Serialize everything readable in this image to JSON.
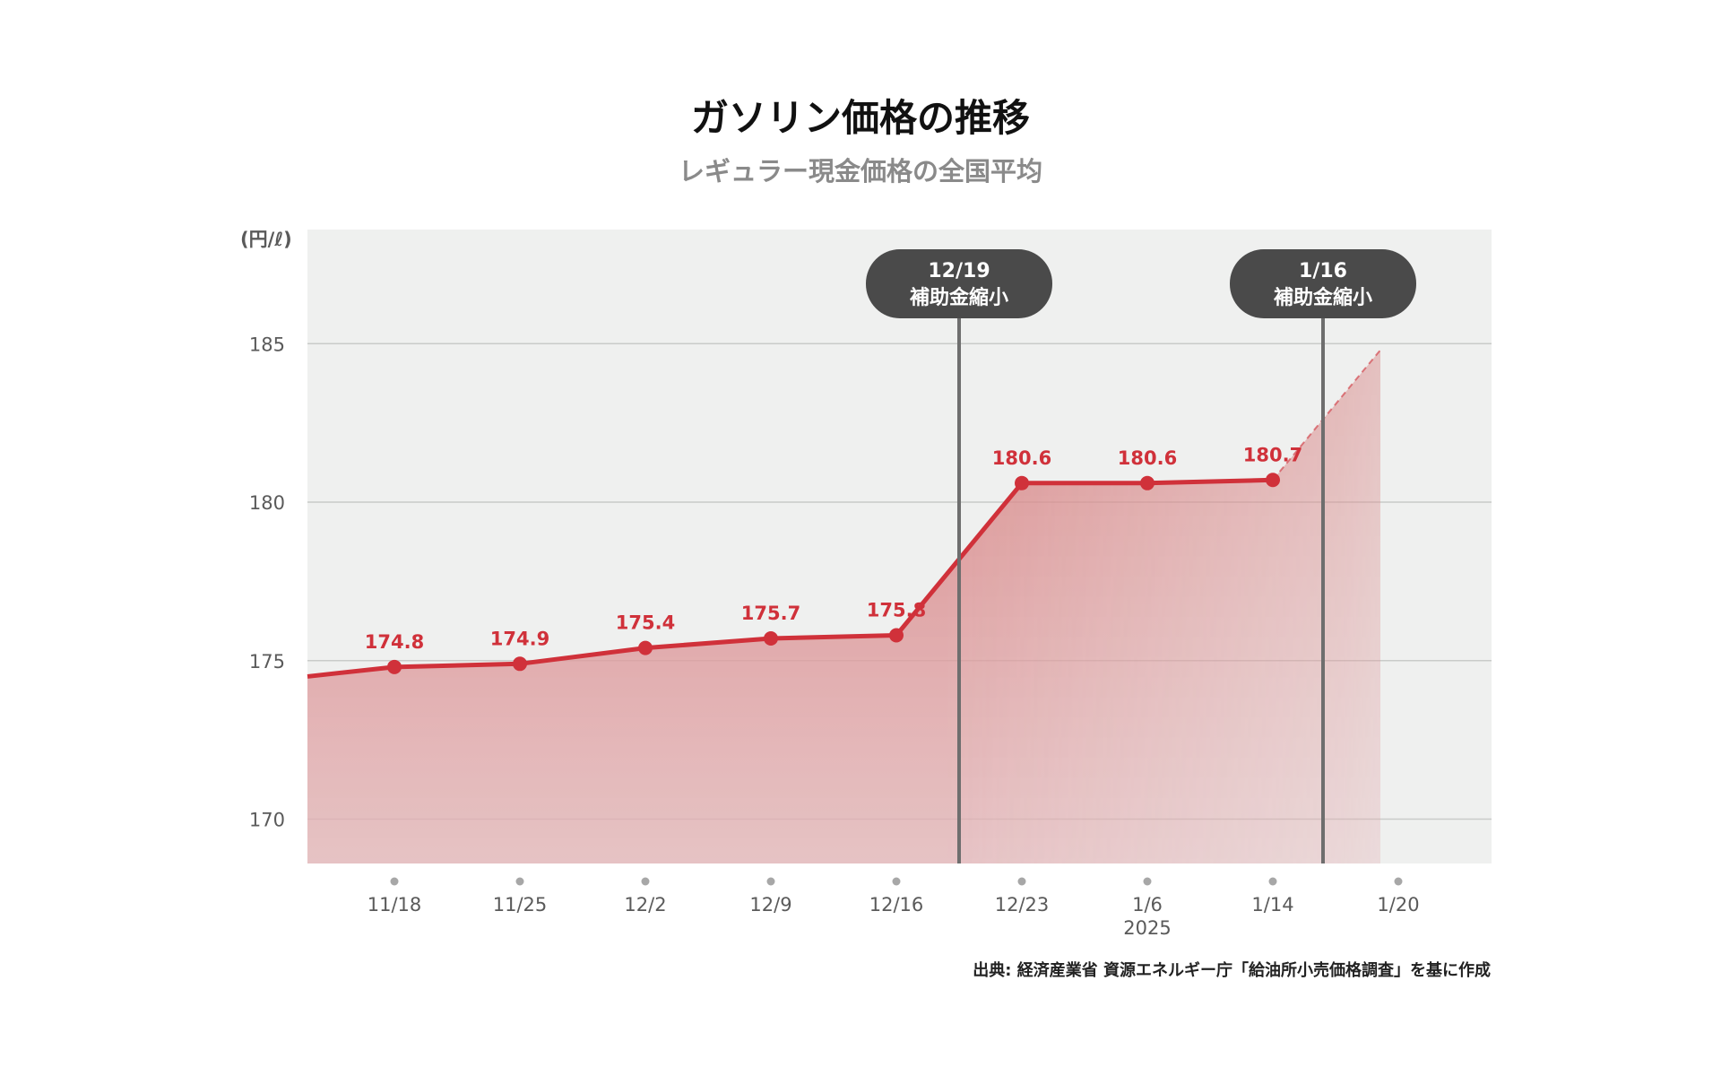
{
  "title": "ガソリン価格の推移",
  "subtitle": "レギュラー現金価格の全国平均",
  "source": "出典: 経済産業省 資源エネルギー庁「給油所小売価格調査」を基に作成",
  "colors": {
    "line": "#d0313a",
    "plot_bg": "#eff0ef",
    "annotation_bg": "#4a4a4a",
    "annotation_line": "#6e6e6e"
  },
  "chart_data": {
    "type": "area",
    "unit_label": "(円/ℓ)",
    "x": [
      "11/18",
      "11/25",
      "12/2",
      "12/9",
      "12/16",
      "12/23",
      "1/6",
      "1/14",
      "1/20"
    ],
    "x_sublabels": {
      "1/6": "2025"
    },
    "series": [
      {
        "values": [
          174.8,
          174.9,
          175.4,
          175.7,
          175.8,
          180.6,
          180.6,
          180.7,
          null
        ]
      }
    ],
    "data_labels": [
      "174.8",
      "174.9",
      "175.4",
      "175.7",
      "175.8",
      "180.6",
      "180.6",
      "180.7"
    ],
    "line_start_value": 174.5,
    "projection": {
      "from": "1/14",
      "to_value": 184.8,
      "style": "dashed"
    },
    "ylim": [
      168.6,
      188.6
    ],
    "yticks": [
      170,
      175,
      180,
      185
    ],
    "ytick_labels": [
      "170",
      "175",
      "180",
      "185"
    ],
    "grid": true,
    "annotations": [
      {
        "line1": "12/19",
        "line2": "補助金縮小",
        "position_between": [
          "12/16",
          "12/23"
        ],
        "fraction": 0.5
      },
      {
        "line1": "1/16",
        "line2": "補助金縮小",
        "position_between": [
          "1/14",
          "1/20"
        ],
        "fraction": 0.4
      }
    ]
  }
}
